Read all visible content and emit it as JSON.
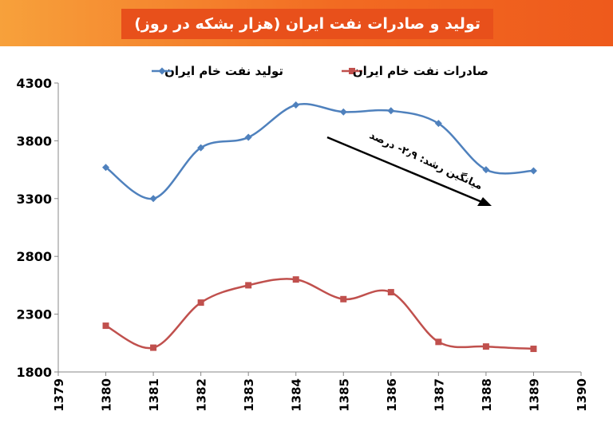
{
  "title": "تولید و صادرات نفت ایران (هزار بشکه در روز)",
  "annotation": "میانگین رشد: ۲٫۹- درصد",
  "colors": {
    "banner": "#f26b22",
    "title_box": "#e8501b",
    "production": "#4f81bd",
    "export": "#c0504d",
    "trend_arrow": "#000000"
  },
  "chart_data": {
    "type": "line",
    "legend_position": "top",
    "grid": false,
    "x": [
      1380,
      1381,
      1382,
      1383,
      1384,
      1385,
      1386,
      1387,
      1388,
      1389
    ],
    "xlim": [
      1379,
      1390
    ],
    "x_ticks": [
      "1379",
      "1380",
      "1381",
      "1382",
      "1383",
      "1384",
      "1385",
      "1386",
      "1387",
      "1388",
      "1389",
      "1390"
    ],
    "ylim": [
      1800,
      4300
    ],
    "y_ticks": [
      "4300",
      "3800",
      "3300",
      "2800",
      "2300",
      "1800"
    ],
    "series": [
      {
        "name": "تولید نفت خام ایران",
        "marker": "diamond",
        "values": [
          3570,
          3300,
          3740,
          3830,
          4110,
          4050,
          4060,
          3950,
          3550,
          3540
        ]
      },
      {
        "name": "صادرات نفت خام ایران",
        "marker": "square",
        "values": [
          2200,
          2010,
          2400,
          2550,
          2600,
          2430,
          2490,
          2060,
          2020,
          2000
        ]
      }
    ]
  }
}
